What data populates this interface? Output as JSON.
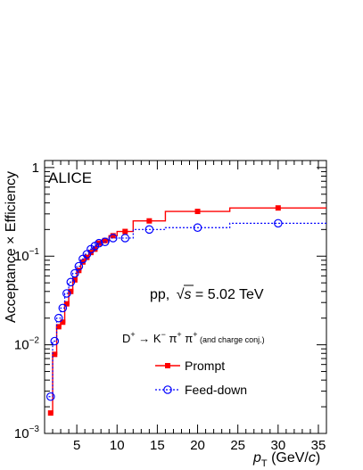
{
  "chart_data": {
    "type": "line",
    "experiment_label": "ALICE",
    "system_text": "pp, ",
    "sqrt_s_symbol": "s",
    "energy_text": " = 5.02 TeV",
    "decay": {
      "d": "D",
      "d_sup": "+",
      "arrow": " → K",
      "k_sup": "−",
      "pi1": " π",
      "pi1_sup": "+",
      "pi2": " π",
      "pi2_sup": "+",
      "note": " (and charge conj.)"
    },
    "xlabel": {
      "italic": "p",
      "sub": "T",
      "rest": " (GeV/",
      "unit_italic": "c",
      "close": ")"
    },
    "ylabel": "Acceptance × Efficiency",
    "xlim": [
      1,
      36
    ],
    "ylim": [
      0.001,
      1.2
    ],
    "y_log": true,
    "x_tick_labels": [
      "5",
      "10",
      "15",
      "20",
      "25",
      "30",
      "35"
    ],
    "y_tick_labels": [
      {
        "base": "10",
        "exp": "−3"
      },
      {
        "base": "10",
        "exp": "−2"
      },
      {
        "base": "10",
        "exp": "−1"
      },
      {
        "base": "1",
        "exp": ""
      }
    ],
    "bin_edges": [
      1.5,
      2,
      2.5,
      3,
      3.5,
      4,
      4.5,
      5,
      5.5,
      6,
      6.5,
      7,
      7.5,
      8,
      9,
      10,
      12,
      16,
      24,
      36
    ],
    "series": [
      {
        "name": "Prompt",
        "color": "#ff0000",
        "style": "solid-step",
        "marker": "filled-square",
        "x": [
          1.75,
          2.25,
          2.75,
          3.25,
          3.75,
          4.25,
          4.75,
          5.25,
          5.75,
          6.25,
          6.75,
          7.25,
          7.75,
          8.5,
          9.5,
          11,
          14,
          20,
          30
        ],
        "values": [
          0.0017,
          0.0078,
          0.016,
          0.018,
          0.029,
          0.04,
          0.054,
          0.069,
          0.086,
          0.097,
          0.11,
          0.12,
          0.14,
          0.15,
          0.17,
          0.19,
          0.25,
          0.32,
          0.35
        ]
      },
      {
        "name": "Feed-down",
        "color": "#0000ff",
        "style": "dotted-step",
        "marker": "open-circle",
        "x": [
          1.75,
          2.25,
          2.75,
          3.25,
          3.75,
          4.25,
          4.75,
          5.25,
          5.75,
          6.25,
          6.75,
          7.25,
          7.75,
          8.5,
          9.5,
          11,
          14,
          20,
          30
        ],
        "values": [
          0.0026,
          0.011,
          0.02,
          0.026,
          0.038,
          0.051,
          0.064,
          0.077,
          0.093,
          0.105,
          0.12,
          0.13,
          0.14,
          0.145,
          0.16,
          0.16,
          0.2,
          0.21,
          0.235
        ]
      }
    ],
    "legend_position": "center-right",
    "grid": false
  }
}
